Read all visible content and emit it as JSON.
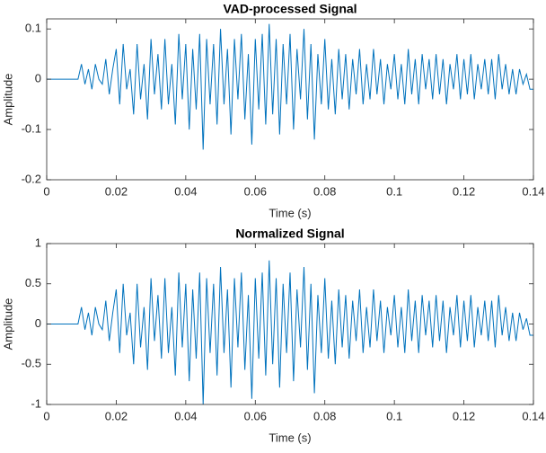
{
  "chart_data": [
    {
      "type": "line",
      "title": "VAD-processed Signal",
      "xlabel": "Time (s)",
      "ylabel": "Amplitude",
      "color": "#0072bd",
      "xlim": [
        0,
        0.14
      ],
      "ylim": [
        -0.2,
        0.12
      ],
      "xticks": [
        0,
        0.02,
        0.04,
        0.06,
        0.08,
        0.1,
        0.12,
        0.14
      ],
      "yticks": [
        -0.2,
        -0.1,
        0,
        0.1
      ],
      "x": [
        0,
        0.001,
        0.002,
        0.003,
        0.004,
        0.005,
        0.006,
        0.007,
        0.008,
        0.009,
        0.01,
        0.011,
        0.012,
        0.013,
        0.014,
        0.015,
        0.016,
        0.017,
        0.018,
        0.019,
        0.02,
        0.021,
        0.022,
        0.023,
        0.024,
        0.025,
        0.026,
        0.027,
        0.028,
        0.029,
        0.03,
        0.031,
        0.032,
        0.033,
        0.034,
        0.035,
        0.036,
        0.037,
        0.038,
        0.039,
        0.04,
        0.041,
        0.042,
        0.043,
        0.044,
        0.045,
        0.046,
        0.047,
        0.048,
        0.049,
        0.05,
        0.051,
        0.052,
        0.053,
        0.054,
        0.055,
        0.056,
        0.057,
        0.058,
        0.059,
        0.06,
        0.061,
        0.062,
        0.063,
        0.064,
        0.065,
        0.066,
        0.067,
        0.068,
        0.069,
        0.07,
        0.071,
        0.072,
        0.073,
        0.074,
        0.075,
        0.076,
        0.077,
        0.078,
        0.079,
        0.08,
        0.081,
        0.082,
        0.083,
        0.084,
        0.085,
        0.086,
        0.087,
        0.088,
        0.089,
        0.09,
        0.091,
        0.092,
        0.093,
        0.094,
        0.095,
        0.096,
        0.097,
        0.098,
        0.099,
        0.1,
        0.101,
        0.102,
        0.103,
        0.104,
        0.105,
        0.106,
        0.107,
        0.108,
        0.109,
        0.11,
        0.111,
        0.112,
        0.113,
        0.114,
        0.115,
        0.116,
        0.117,
        0.118,
        0.119,
        0.12,
        0.121,
        0.122,
        0.123,
        0.124,
        0.125,
        0.126,
        0.127,
        0.128,
        0.129,
        0.13,
        0.131,
        0.132,
        0.133,
        0.134,
        0.135,
        0.136,
        0.137,
        0.138,
        0.139,
        0.14
      ],
      "values": [
        0,
        0,
        0,
        0,
        0,
        0,
        0,
        0,
        0,
        0,
        0.03,
        -0.01,
        0.02,
        -0.02,
        0.03,
        0,
        -0.01,
        0.04,
        -0.03,
        0.02,
        0.06,
        -0.05,
        0.07,
        -0.02,
        0.02,
        -0.07,
        0.07,
        -0.04,
        0.03,
        -0.08,
        0.08,
        -0.03,
        0.05,
        -0.06,
        0.08,
        -0.05,
        0.03,
        -0.09,
        0.09,
        -0.04,
        0.07,
        -0.1,
        0.06,
        -0.06,
        0.09,
        -0.14,
        0.08,
        -0.05,
        0.07,
        -0.09,
        0.1,
        -0.05,
        0.06,
        -0.11,
        0.08,
        -0.04,
        0.09,
        -0.08,
        0.05,
        -0.13,
        0.08,
        -0.06,
        0.09,
        -0.09,
        0.11,
        -0.07,
        0.08,
        -0.11,
        0.07,
        -0.05,
        0.09,
        -0.1,
        0.06,
        -0.04,
        0.1,
        -0.08,
        0.07,
        -0.12,
        0.05,
        -0.05,
        0.08,
        -0.06,
        0.04,
        -0.07,
        0.06,
        -0.04,
        0.05,
        -0.06,
        0.04,
        -0.03,
        0.06,
        -0.05,
        0.03,
        -0.04,
        0.06,
        -0.03,
        0.04,
        -0.05,
        0.03,
        -0.02,
        0.05,
        -0.04,
        0.03,
        -0.05,
        0.06,
        -0.03,
        0.04,
        -0.05,
        0.05,
        -0.02,
        0.04,
        -0.04,
        0.05,
        -0.03,
        0.04,
        -0.05,
        0.03,
        -0.02,
        0.05,
        -0.04,
        0.04,
        -0.03,
        0.05,
        -0.04,
        0.03,
        -0.02,
        0.04,
        -0.03,
        0.04,
        -0.04,
        0.05,
        -0.02,
        0.03,
        -0.03,
        0.02,
        -0.03,
        0.02,
        -0.01,
        0.01,
        -0.02,
        -0.02
      ]
    },
    {
      "type": "line",
      "title": "Normalized Signal",
      "xlabel": "Time (s)",
      "ylabel": "Amplitude",
      "color": "#0072bd",
      "xlim": [
        0,
        0.14
      ],
      "ylim": [
        -1,
        1
      ],
      "xticks": [
        0,
        0.02,
        0.04,
        0.06,
        0.08,
        0.1,
        0.12,
        0.14
      ],
      "yticks": [
        -1,
        -0.5,
        0,
        0.5,
        1
      ],
      "x": [
        0,
        0.001,
        0.002,
        0.003,
        0.004,
        0.005,
        0.006,
        0.007,
        0.008,
        0.009,
        0.01,
        0.011,
        0.012,
        0.013,
        0.014,
        0.015,
        0.016,
        0.017,
        0.018,
        0.019,
        0.02,
        0.021,
        0.022,
        0.023,
        0.024,
        0.025,
        0.026,
        0.027,
        0.028,
        0.029,
        0.03,
        0.031,
        0.032,
        0.033,
        0.034,
        0.035,
        0.036,
        0.037,
        0.038,
        0.039,
        0.04,
        0.041,
        0.042,
        0.043,
        0.044,
        0.045,
        0.046,
        0.047,
        0.048,
        0.049,
        0.05,
        0.051,
        0.052,
        0.053,
        0.054,
        0.055,
        0.056,
        0.057,
        0.058,
        0.059,
        0.06,
        0.061,
        0.062,
        0.063,
        0.064,
        0.065,
        0.066,
        0.067,
        0.068,
        0.069,
        0.07,
        0.071,
        0.072,
        0.073,
        0.074,
        0.075,
        0.076,
        0.077,
        0.078,
        0.079,
        0.08,
        0.081,
        0.082,
        0.083,
        0.084,
        0.085,
        0.086,
        0.087,
        0.088,
        0.089,
        0.09,
        0.091,
        0.092,
        0.093,
        0.094,
        0.095,
        0.096,
        0.097,
        0.098,
        0.099,
        0.1,
        0.101,
        0.102,
        0.103,
        0.104,
        0.105,
        0.106,
        0.107,
        0.108,
        0.109,
        0.11,
        0.111,
        0.112,
        0.113,
        0.114,
        0.115,
        0.116,
        0.117,
        0.118,
        0.119,
        0.12,
        0.121,
        0.122,
        0.123,
        0.124,
        0.125,
        0.126,
        0.127,
        0.128,
        0.129,
        0.13,
        0.131,
        0.132,
        0.133,
        0.134,
        0.135,
        0.136,
        0.137,
        0.138,
        0.139,
        0.14
      ],
      "values": [
        0,
        0,
        0,
        0,
        0,
        0,
        0,
        0,
        0,
        0,
        0.21,
        -0.07,
        0.14,
        -0.14,
        0.21,
        0,
        -0.07,
        0.29,
        -0.21,
        0.14,
        0.43,
        -0.36,
        0.5,
        -0.14,
        0.14,
        -0.5,
        0.5,
        -0.29,
        0.21,
        -0.57,
        0.57,
        -0.21,
        0.36,
        -0.43,
        0.57,
        -0.36,
        0.21,
        -0.64,
        0.64,
        -0.29,
        0.5,
        -0.71,
        0.43,
        -0.43,
        0.64,
        -1,
        0.57,
        -0.36,
        0.5,
        -0.64,
        0.71,
        -0.36,
        0.43,
        -0.79,
        0.57,
        -0.29,
        0.64,
        -0.57,
        0.36,
        -0.93,
        0.57,
        -0.43,
        0.64,
        -0.64,
        0.79,
        -0.5,
        0.57,
        -0.79,
        0.5,
        -0.36,
        0.64,
        -0.71,
        0.43,
        -0.29,
        0.71,
        -0.57,
        0.5,
        -0.86,
        0.36,
        -0.36,
        0.57,
        -0.43,
        0.29,
        -0.5,
        0.43,
        -0.29,
        0.36,
        -0.43,
        0.29,
        -0.21,
        0.43,
        -0.36,
        0.21,
        -0.29,
        0.43,
        -0.21,
        0.29,
        -0.36,
        0.21,
        -0.14,
        0.36,
        -0.29,
        0.21,
        -0.36,
        0.43,
        -0.21,
        0.29,
        -0.36,
        0.36,
        -0.14,
        0.29,
        -0.29,
        0.36,
        -0.21,
        0.29,
        -0.36,
        0.21,
        -0.14,
        0.36,
        -0.29,
        0.29,
        -0.21,
        0.36,
        -0.29,
        0.21,
        -0.14,
        0.29,
        -0.21,
        0.29,
        -0.29,
        0.36,
        -0.14,
        0.21,
        -0.21,
        0.14,
        -0.21,
        0.14,
        -0.07,
        0.07,
        -0.14,
        -0.14
      ]
    }
  ]
}
